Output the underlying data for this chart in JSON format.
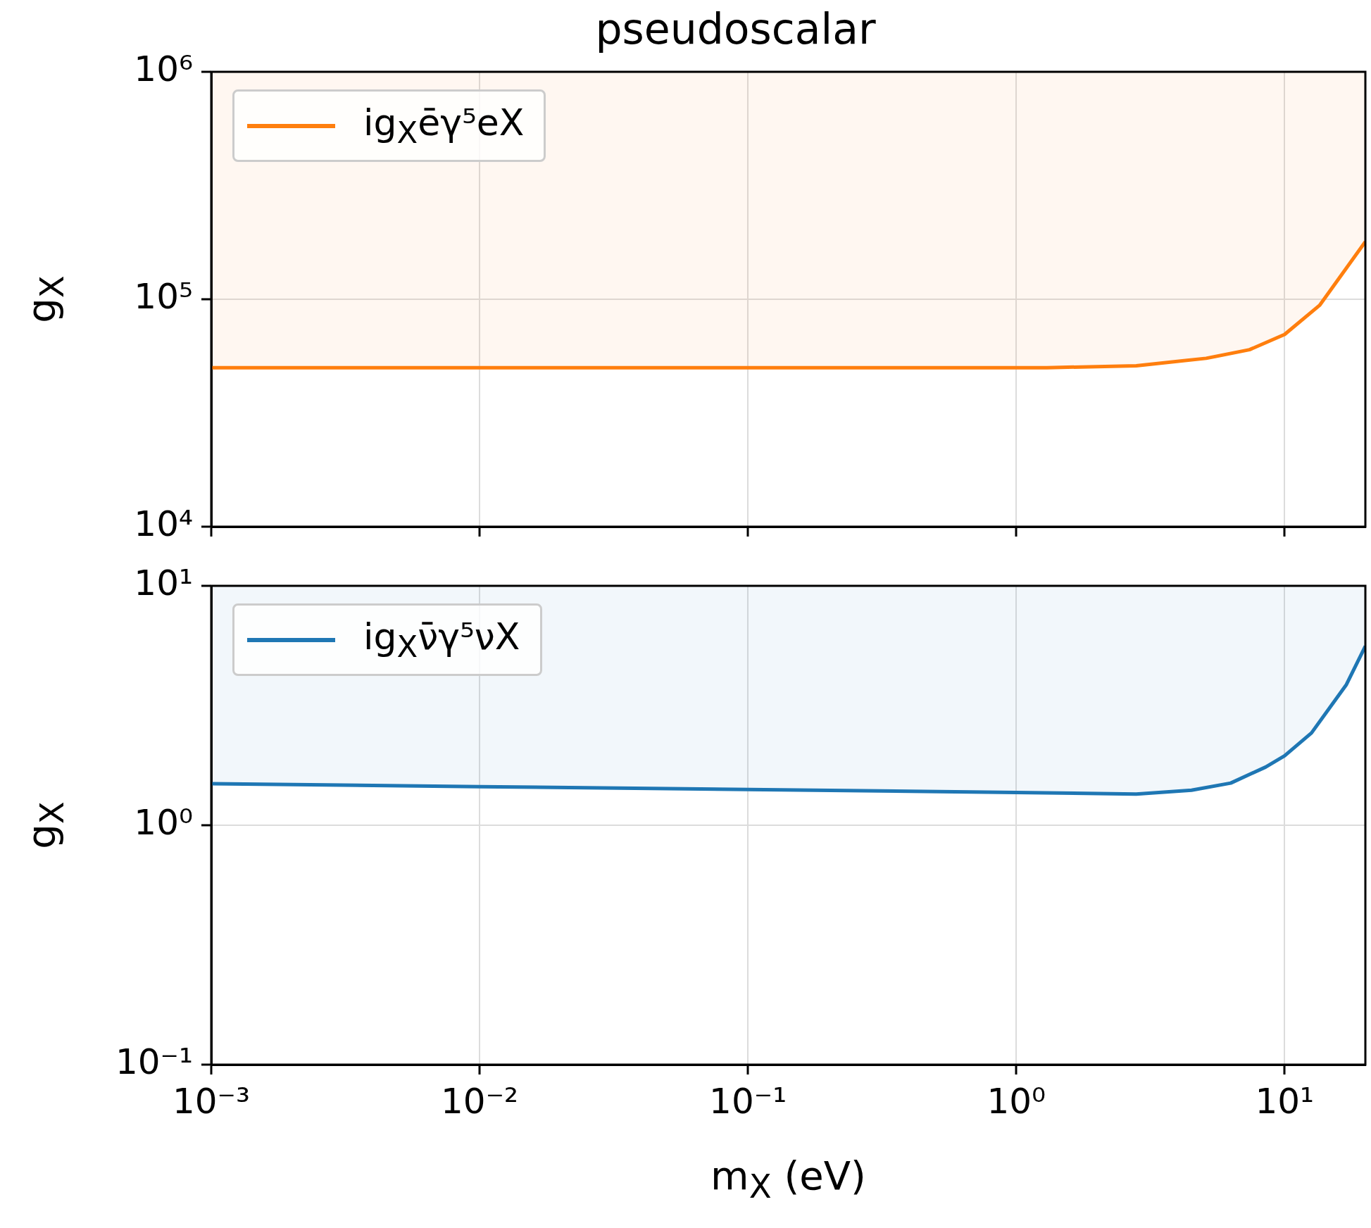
{
  "chart_data": [
    {
      "type": "line",
      "title": "pseudoscalar",
      "ylabel": "g$_{X}$",
      "log": "xy",
      "grid": true,
      "legend": "top left",
      "tick_labels": "y",
      "xlim": [
        0.001,
        20
      ],
      "xticks": [
        {
          "value": 0.001,
          "label": null
        },
        {
          "value": 0.01,
          "label": null
        },
        {
          "value": 0.1,
          "label": null
        },
        {
          "value": 1,
          "label": null
        },
        {
          "value": 10,
          "label": null
        }
      ],
      "ylim": [
        10000,
        1000000
      ],
      "yticks": [
        {
          "value": 10000,
          "label": "10⁴"
        },
        {
          "value": 100000,
          "label": "10⁵"
        },
        {
          "value": 1000000,
          "label": "10⁶"
        }
      ],
      "series": [
        {
          "name": "ig$_{X}$ēγ⁵eX",
          "color": "#ff7f0e",
          "x": [
            0.001,
            0.01,
            0.1,
            1,
            1.3,
            2.8,
            5.1,
            7.4,
            10,
            13.5,
            20
          ],
          "values": [
            50000,
            50000,
            50000,
            50000,
            50000,
            51000,
            55000,
            60000,
            70000,
            94000,
            179000
          ],
          "lower": [
            50000,
            50000,
            50000,
            50000,
            50000,
            51000,
            55000,
            60000,
            70000,
            94000,
            179000
          ],
          "upper": [
            1000000,
            1000000,
            1000000,
            1000000,
            1000000,
            1000000,
            1000000,
            1000000,
            1000000,
            1000000,
            1000000
          ]
        }
      ]
    },
    {
      "type": "line",
      "xlabel": "m$_{X}$ (eV)",
      "ylabel": "g$_{X}$",
      "log": "xy",
      "grid": true,
      "legend": "top left",
      "xlim": [
        0.001,
        20
      ],
      "xticks": [
        {
          "value": 0.001,
          "label": "10⁻³"
        },
        {
          "value": 0.01,
          "label": "10⁻²"
        },
        {
          "value": 0.1,
          "label": "10⁻¹"
        },
        {
          "value": 1,
          "label": "10⁰"
        },
        {
          "value": 10,
          "label": "10¹"
        }
      ],
      "ylim": [
        0.1,
        10
      ],
      "yticks": [
        {
          "value": 0.1,
          "label": "10⁻¹"
        },
        {
          "value": 1,
          "label": "10⁰"
        },
        {
          "value": 10,
          "label": "10¹"
        }
      ],
      "series": [
        {
          "name": "ig$_{X}$ν̄γ⁵νX",
          "color": "#1f77b4",
          "x": [
            0.001,
            0.01,
            0.1,
            1,
            2.8,
            4.5,
            6.3,
            8.5,
            10,
            12.6,
            17,
            20
          ],
          "values": [
            1.49,
            1.45,
            1.41,
            1.37,
            1.35,
            1.4,
            1.5,
            1.75,
            1.95,
            2.43,
            3.87,
            5.6
          ],
          "lower": [
            1.49,
            1.45,
            1.41,
            1.37,
            1.35,
            1.4,
            1.5,
            1.75,
            1.95,
            2.43,
            3.87,
            5.6
          ],
          "upper": [
            10,
            10,
            10,
            10,
            10,
            10,
            10,
            10,
            10,
            10,
            10,
            10
          ]
        }
      ]
    }
  ]
}
